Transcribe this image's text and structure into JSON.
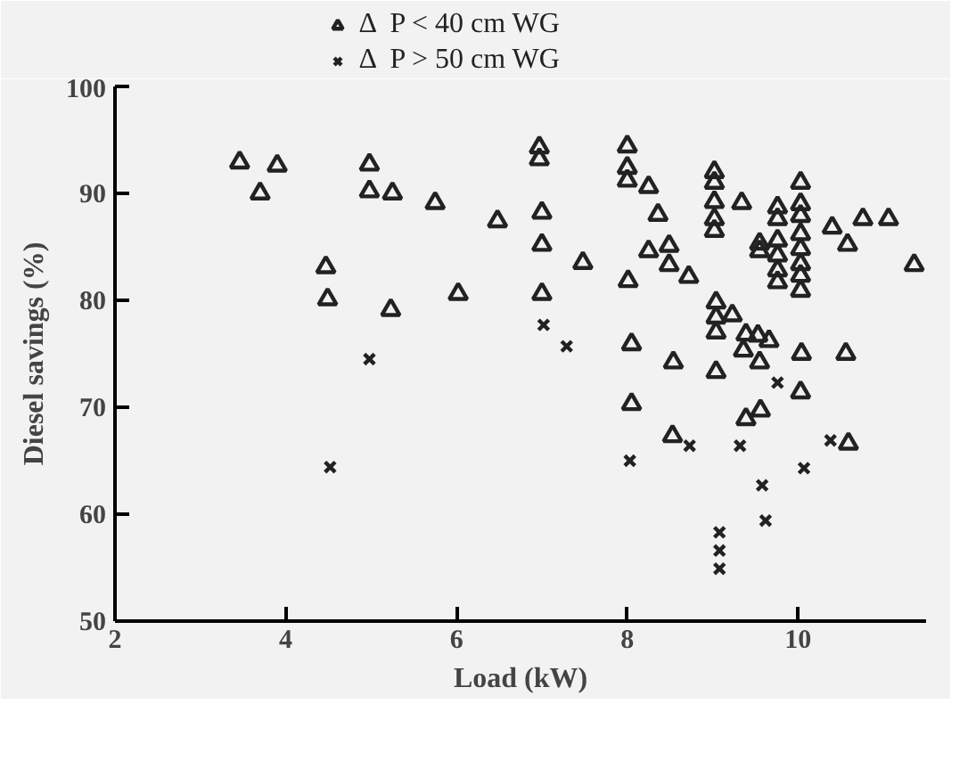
{
  "chart_data": {
    "type": "scatter",
    "xlabel": "Load (kW)",
    "ylabel": "Diesel savings (%)",
    "xlim": [
      2,
      11.5
    ],
    "ylim": [
      50,
      100
    ],
    "xticks": [
      2,
      4,
      6,
      8,
      10
    ],
    "yticks": [
      50,
      60,
      70,
      80,
      90,
      100
    ],
    "grid": false,
    "legend": "top",
    "series": [
      {
        "name": "Δ  P < 40 cm WG",
        "color": "#222222",
        "marker": "triangle",
        "x": [
          3.46,
          3.9,
          4.98,
          3.7,
          4.98,
          5.25,
          5.75,
          4.47,
          4.49,
          5.23,
          6.97,
          6.97,
          8.0,
          8.0,
          8.0,
          8.25,
          6.48,
          7.0,
          8.36,
          7.0,
          7.48,
          8.25,
          8.49,
          8.49,
          8.72,
          8.01,
          6.02,
          7.0,
          8.05,
          8.54,
          8.05,
          8.53,
          9.02,
          9.02,
          9.02,
          9.02,
          9.02,
          9.34,
          10.03,
          9.76,
          9.76,
          10.03,
          10.03,
          10.03,
          10.03,
          10.03,
          10.03,
          10.03,
          9.55,
          9.55,
          9.76,
          9.76,
          9.76,
          9.76,
          10.4,
          10.58,
          10.76,
          11.06,
          11.36,
          9.04,
          9.04,
          9.04,
          9.23,
          9.39,
          9.53,
          9.66,
          9.36,
          9.55,
          9.04,
          10.04,
          10.56,
          10.03,
          9.56,
          9.39,
          10.59
        ],
        "values": [
          92.9,
          92.6,
          92.7,
          90.0,
          90.2,
          90.0,
          89.1,
          83.1,
          80.1,
          79.1,
          94.3,
          93.2,
          94.4,
          92.4,
          91.2,
          90.6,
          87.4,
          88.2,
          88.0,
          85.2,
          83.5,
          84.6,
          85.1,
          83.3,
          82.2,
          81.8,
          80.6,
          80.6,
          75.9,
          74.2,
          70.3,
          67.3,
          92.0,
          91.0,
          89.2,
          87.6,
          86.5,
          89.1,
          91.0,
          88.7,
          87.6,
          89.0,
          87.9,
          86.2,
          84.8,
          83.4,
          82.3,
          80.9,
          85.3,
          84.6,
          85.6,
          84.2,
          82.8,
          81.7,
          86.8,
          85.2,
          87.6,
          87.6,
          83.3,
          79.8,
          78.4,
          77.0,
          78.6,
          76.8,
          76.7,
          76.2,
          75.3,
          74.2,
          73.3,
          75.0,
          75.0,
          71.4,
          69.7,
          68.9,
          66.6
        ]
      },
      {
        "name": "Δ  P > 50 cm WG",
        "color": "#222222",
        "marker": "cross",
        "x": [
          4.98,
          4.52,
          7.02,
          7.29,
          8.03,
          8.73,
          9.76,
          9.32,
          10.38,
          10.07,
          9.58,
          9.62,
          9.08,
          9.08,
          9.08
        ],
        "values": [
          74.5,
          64.4,
          77.7,
          75.7,
          65.0,
          66.4,
          72.3,
          66.4,
          66.9,
          64.3,
          62.7,
          59.4,
          58.3,
          56.6,
          54.9
        ]
      }
    ]
  }
}
